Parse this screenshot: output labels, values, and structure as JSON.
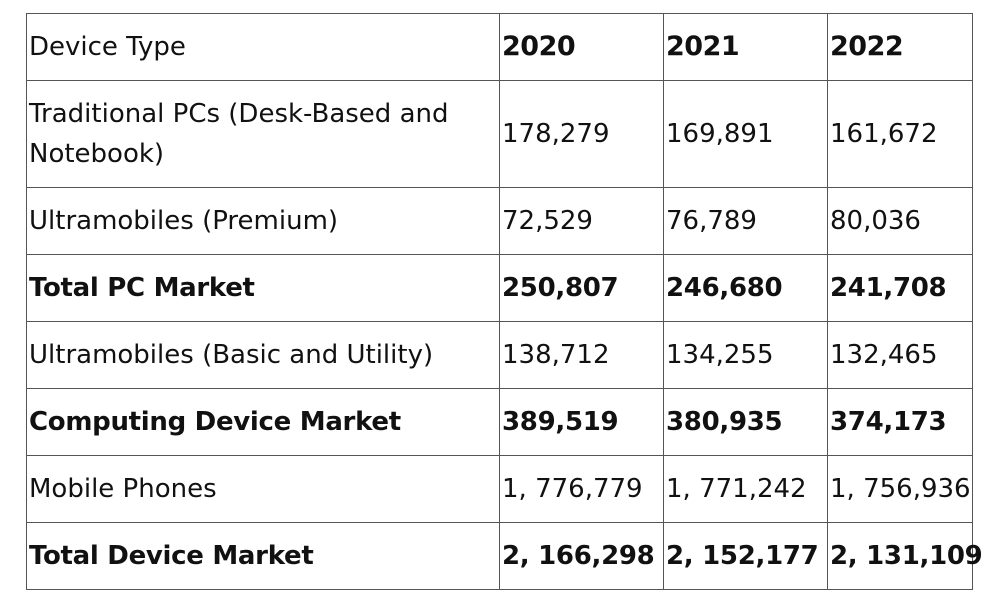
{
  "table": {
    "header": {
      "label": "Device Type",
      "years": [
        "2020",
        "2021",
        "2022"
      ]
    },
    "rows": [
      {
        "label": "Traditional PCs (Desk-Based and Notebook)",
        "values": [
          "178,279",
          "169,891",
          "161,672"
        ],
        "bold": false
      },
      {
        "label": "Ultramobiles (Premium)",
        "values": [
          "72,529",
          "76,789",
          "80,036"
        ],
        "bold": false
      },
      {
        "label": "Total PC Market",
        "values": [
          "250,807",
          "246,680",
          "241,708"
        ],
        "bold": true
      },
      {
        "label": "Ultramobiles (Basic and Utility)",
        "values": [
          "138,712",
          "134,255",
          "132,465"
        ],
        "bold": false
      },
      {
        "label": "Computing Device Market",
        "values": [
          "389,519",
          "380,935",
          "374,173"
        ],
        "bold": true
      },
      {
        "label": "Mobile Phones",
        "values": [
          "1, 776,779",
          "1, 771,242",
          "1, 756,936"
        ],
        "bold": false
      },
      {
        "label": "Total Device Market",
        "values": [
          "2, 166,298",
          "2, 152,177",
          "2, 131,109"
        ],
        "bold": true
      }
    ]
  }
}
